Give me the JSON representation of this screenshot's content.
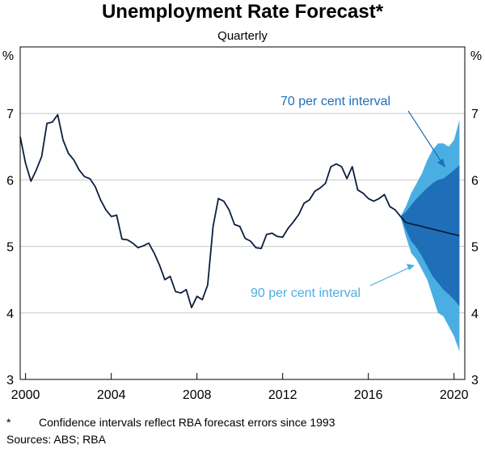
{
  "chart_data": {
    "type": "line",
    "title": "Unemployment Rate Forecast*",
    "subtitle": "Quarterly",
    "y_unit": "%",
    "ylim": [
      3,
      8
    ],
    "y_ticks": [
      "3",
      "4",
      "5",
      "6",
      "7"
    ],
    "xlim": [
      1999.75,
      2020.5
    ],
    "x_ticks": [
      "2000",
      "2004",
      "2008",
      "2012",
      "2016",
      "2020"
    ],
    "colors": {
      "line": "#0b1e3d",
      "ci70": "#1f6fb8",
      "ci90": "#4aaee3",
      "grid": "#c8c8c8",
      "annotation_70": "#1f6fb8",
      "annotation_90": "#4aaee3"
    },
    "series": [
      {
        "x": [
          1999.75,
          2000.0,
          2000.25,
          2000.5,
          2000.75,
          2001.0,
          2001.25,
          2001.5,
          2001.75,
          2002.0,
          2002.25,
          2002.5,
          2002.75,
          2003.0,
          2003.25,
          2003.5,
          2003.75,
          2004.0,
          2004.25,
          2004.5,
          2004.75,
          2005.0,
          2005.25,
          2005.5,
          2005.75,
          2006.0,
          2006.25,
          2006.5,
          2006.75,
          2007.0,
          2007.25,
          2007.5,
          2007.75,
          2008.0,
          2008.25,
          2008.5,
          2008.75,
          2009.0,
          2009.25,
          2009.5,
          2009.75,
          2010.0,
          2010.25,
          2010.5,
          2010.75,
          2011.0,
          2011.25,
          2011.5,
          2011.75,
          2012.0,
          2012.25,
          2012.5,
          2012.75,
          2013.0,
          2013.25,
          2013.5,
          2013.75,
          2014.0,
          2014.25,
          2014.5,
          2014.75,
          2015.0,
          2015.25,
          2015.5,
          2015.75,
          2016.0,
          2016.25,
          2016.5,
          2016.75,
          2017.0,
          2017.25,
          2017.5
        ],
        "values": [
          6.65,
          6.25,
          5.98,
          6.15,
          6.35,
          6.85,
          6.87,
          6.98,
          6.6,
          6.4,
          6.3,
          6.15,
          6.05,
          6.02,
          5.9,
          5.7,
          5.55,
          5.45,
          5.47,
          5.11,
          5.1,
          5.05,
          4.98,
          5.01,
          5.05,
          4.9,
          4.72,
          4.5,
          4.55,
          4.32,
          4.3,
          4.35,
          4.08,
          4.25,
          4.2,
          4.42,
          5.3,
          5.72,
          5.68,
          5.55,
          5.33,
          5.3,
          5.12,
          5.08,
          4.98,
          4.97,
          5.18,
          5.2,
          5.15,
          5.14,
          5.27,
          5.37,
          5.48,
          5.65,
          5.7,
          5.83,
          5.88,
          5.95,
          6.2,
          6.24,
          6.2,
          6.02,
          6.2,
          5.85,
          5.8,
          5.72,
          5.68,
          5.72,
          5.78,
          5.6,
          5.55,
          5.45
        ]
      },
      {
        "x": [
          2017.5,
          2017.75,
          2018.0,
          2018.25,
          2018.5,
          2018.75,
          2019.0,
          2019.25,
          2019.5,
          2019.75,
          2020.0,
          2020.25
        ],
        "values": [
          5.45,
          5.36,
          5.34,
          5.32,
          5.3,
          5.28,
          5.26,
          5.24,
          5.22,
          5.2,
          5.18,
          5.16
        ]
      }
    ],
    "intervals": [
      {
        "label": "90 per cent interval",
        "x": [
          2017.5,
          2017.75,
          2018.0,
          2018.25,
          2018.5,
          2018.75,
          2019.0,
          2019.25,
          2019.5,
          2019.75,
          2020.0,
          2020.25
        ],
        "upper": [
          5.45,
          5.6,
          5.8,
          5.95,
          6.1,
          6.3,
          6.45,
          6.55,
          6.55,
          6.5,
          6.6,
          6.9
        ],
        "lower": [
          5.45,
          5.15,
          4.9,
          4.8,
          4.65,
          4.5,
          4.25,
          4.0,
          3.95,
          3.8,
          3.65,
          3.42
        ]
      },
      {
        "label": "70 per cent interval",
        "x": [
          2017.5,
          2017.75,
          2018.0,
          2018.25,
          2018.5,
          2018.75,
          2019.0,
          2019.25,
          2019.5,
          2019.75,
          2020.0,
          2020.25
        ],
        "upper": [
          5.45,
          5.52,
          5.62,
          5.72,
          5.8,
          5.88,
          5.95,
          6.0,
          6.02,
          6.08,
          6.15,
          6.22
        ],
        "lower": [
          5.45,
          5.25,
          5.08,
          4.98,
          4.85,
          4.7,
          4.55,
          4.45,
          4.35,
          4.28,
          4.2,
          4.1
        ]
      }
    ],
    "annotations": [
      "70 per cent interval",
      "90 per cent interval"
    ]
  },
  "footnote": {
    "mark": "*",
    "text": "Confidence intervals reflect RBA forecast errors since 1993"
  },
  "sources": "Sources: ABS; RBA"
}
